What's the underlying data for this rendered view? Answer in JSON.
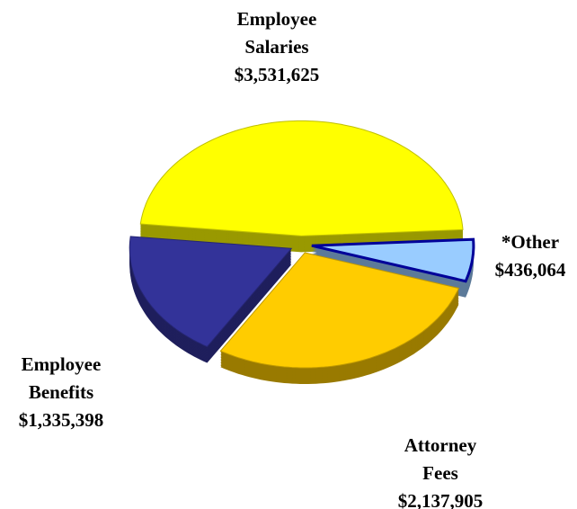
{
  "chart_data": {
    "type": "pie",
    "categories": [
      "Employee Salaries",
      "*Other",
      "Attorney Fees",
      "Employee Benefits"
    ],
    "values": [
      3531625,
      436064,
      2137905,
      1335398
    ],
    "value_labels": [
      "$3,531,625",
      "$436,064",
      "$2,137,905",
      "$1,335,398"
    ],
    "colors": [
      "#ffff00",
      "#99ccff",
      "#ffcc00",
      "#333399"
    ],
    "exploded": true,
    "three_d": true
  }
}
